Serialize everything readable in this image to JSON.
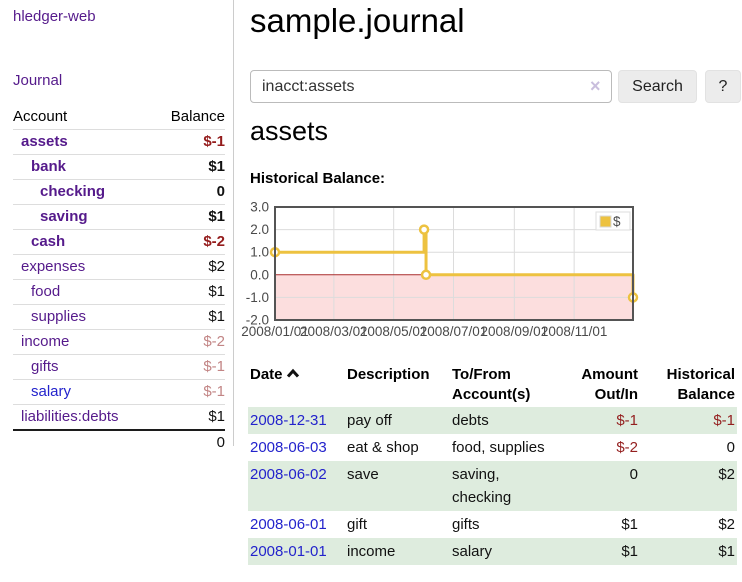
{
  "sidebar": {
    "brand": "hledger-web",
    "journal_link": "Journal",
    "accounts": {
      "header_account": "Account",
      "header_balance": "Balance",
      "rows": [
        {
          "name": "assets",
          "balance": "$-1",
          "depth": 0,
          "bold": true,
          "balance_tone": "neg-strong",
          "link_tone": "purple"
        },
        {
          "name": "bank",
          "balance": "$1",
          "depth": 1,
          "bold": true,
          "balance_tone": "pos",
          "link_tone": "purple"
        },
        {
          "name": "checking",
          "balance": "0",
          "depth": 2,
          "bold": true,
          "balance_tone": "pos",
          "link_tone": "purple"
        },
        {
          "name": "saving",
          "balance": "$1",
          "depth": 2,
          "bold": true,
          "balance_tone": "pos",
          "link_tone": "purple"
        },
        {
          "name": "cash",
          "balance": "$-2",
          "depth": 1,
          "bold": true,
          "balance_tone": "neg-strong",
          "link_tone": "purple"
        },
        {
          "name": "expenses",
          "balance": "$2",
          "depth": 0,
          "bold": false,
          "balance_tone": "pos",
          "link_tone": "purple"
        },
        {
          "name": "food",
          "balance": "$1",
          "depth": 1,
          "bold": false,
          "balance_tone": "pos",
          "link_tone": "purple"
        },
        {
          "name": "supplies",
          "balance": "$1",
          "depth": 1,
          "bold": false,
          "balance_tone": "pos",
          "link_tone": "purple"
        },
        {
          "name": "income",
          "balance": "$-2",
          "depth": 0,
          "bold": false,
          "balance_tone": "neg-soft",
          "link_tone": "purple"
        },
        {
          "name": "gifts",
          "balance": "$-1",
          "depth": 1,
          "bold": false,
          "balance_tone": "neg-soft",
          "link_tone": "purple"
        },
        {
          "name": "salary",
          "balance": "$-1",
          "depth": 1,
          "bold": false,
          "balance_tone": "neg-soft",
          "link_tone": "blue"
        },
        {
          "name": "liabilities:debts",
          "balance": "$1",
          "depth": 0,
          "bold": false,
          "balance_tone": "pos",
          "link_tone": "purple"
        }
      ],
      "total": "0"
    }
  },
  "header": {
    "title": "sample.journal"
  },
  "search": {
    "value": "inacct:assets",
    "clear_icon": "×",
    "button_label": "Search",
    "help_label": "?"
  },
  "report": {
    "heading": "assets",
    "chart_title": "Historical Balance:"
  },
  "chart_data": {
    "type": "line",
    "step": true,
    "title": "Historical Balance",
    "legend": {
      "label": "$",
      "position": "top-right"
    },
    "series": [
      {
        "name": "$",
        "color": "#edc240",
        "points": [
          {
            "date": "2008-01-01",
            "value": 1
          },
          {
            "date": "2008-06-01",
            "value": 2
          },
          {
            "date": "2008-06-03",
            "value": 0
          },
          {
            "date": "2008-12-31",
            "value": -1
          }
        ]
      }
    ],
    "x_domain": [
      "2008-01-01",
      "2008-12-31"
    ],
    "y_domain": [
      -2,
      3
    ],
    "y_ticks": [
      "3.0",
      "2.0",
      "1.0",
      "0.0",
      "-1.0",
      "-2.0"
    ],
    "x_ticks": [
      "2008/01/01",
      "2008/03/01",
      "2008/05/01",
      "2008/07/01",
      "2008/09/01",
      "2008/11/01"
    ],
    "grid": true,
    "negative_region_color": "#fcdede",
    "zero_line_color": "#a92c2c",
    "border_color": "#545454"
  },
  "transactions": {
    "headers": {
      "date": "Date",
      "description": "Description",
      "accounts": "To/From Account(s)",
      "amount": "Amount Out/In",
      "balance": "Historical Balance"
    },
    "sort": {
      "column": "date",
      "direction": "ascending"
    },
    "rows": [
      {
        "date": "2008-12-31",
        "description": "pay off",
        "accounts": "debts",
        "amount": "$-1",
        "balance": "$-1",
        "amount_neg": true,
        "balance_neg": true
      },
      {
        "date": "2008-06-03",
        "description": "eat & shop",
        "accounts": "food, supplies",
        "amount": "$-2",
        "balance": "0",
        "amount_neg": true,
        "balance_neg": false
      },
      {
        "date": "2008-06-02",
        "description": "save",
        "accounts": "saving, checking",
        "amount": "0",
        "balance": "$2",
        "amount_neg": false,
        "balance_neg": false
      },
      {
        "date": "2008-06-01",
        "description": "gift",
        "accounts": "gifts",
        "amount": "$1",
        "balance": "$2",
        "amount_neg": false,
        "balance_neg": false
      },
      {
        "date": "2008-01-01",
        "description": "income",
        "accounts": "salary",
        "amount": "$1",
        "balance": "$1",
        "amount_neg": false,
        "balance_neg": false
      }
    ]
  }
}
